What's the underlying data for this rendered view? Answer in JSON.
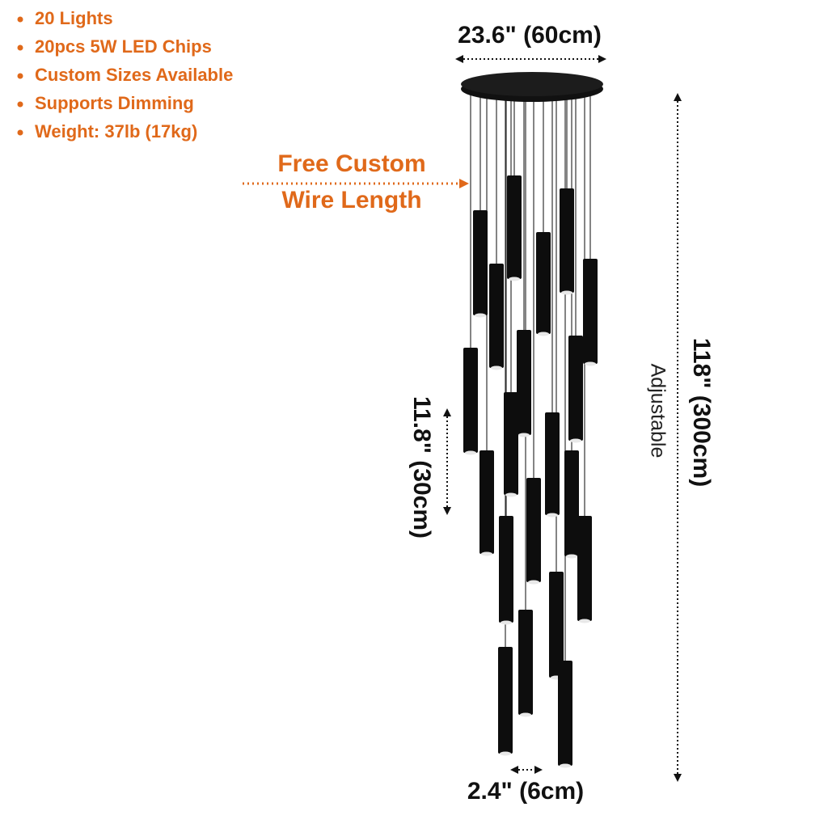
{
  "features": [
    "20 Lights",
    "20pcs 5W LED Chips",
    "Custom Sizes Available",
    "Supports Dimming",
    "Weight: 37lb (17kg)"
  ],
  "callout": [
    "Free Custom",
    "Wire Length"
  ],
  "dimensions": {
    "width": "23.6\" (60cm)",
    "height": "118\" (300cm)",
    "adjustable": "Adjustable",
    "tube_length": "11.8\" (30cm)",
    "tube_diameter": "2.4\" (6cm)"
  }
}
